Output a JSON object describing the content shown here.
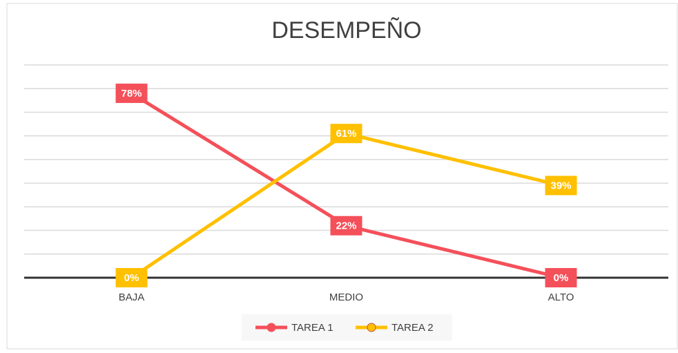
{
  "chart_data": {
    "type": "line",
    "title": "DESEMPEÑO",
    "categories": [
      "BAJA",
      "MEDIO",
      "ALTO"
    ],
    "series": [
      {
        "name": "TAREA 1",
        "color": "#f4505a",
        "values": [
          78,
          22,
          0
        ],
        "value_labels": [
          "78%",
          "22%",
          "0%"
        ]
      },
      {
        "name": "TAREA 2",
        "color": "#ffc000",
        "values": [
          0,
          61,
          39
        ],
        "value_labels": [
          "0%",
          "61%",
          "39%"
        ]
      }
    ],
    "ylim": [
      0,
      90
    ],
    "yticks": [
      0,
      10,
      20,
      30,
      40,
      50,
      60,
      70,
      80,
      90
    ],
    "grid": true,
    "legend": "bottom"
  }
}
